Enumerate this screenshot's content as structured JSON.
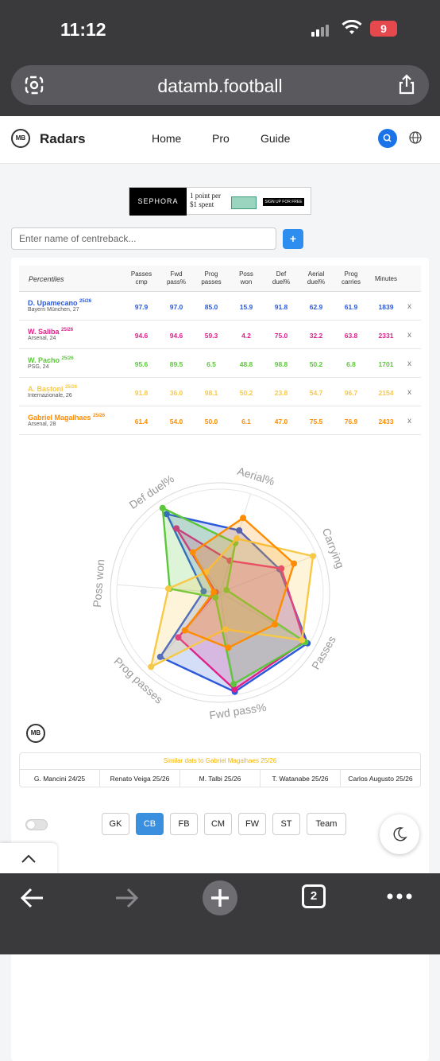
{
  "status": {
    "time": "11:12",
    "battery": "9"
  },
  "browser": {
    "url": "datamb.football",
    "tab_count": "2"
  },
  "nav": {
    "brand": "Radars",
    "logo": "MB",
    "links": [
      "Home",
      "Pro",
      "Guide"
    ]
  },
  "ad": {
    "brand": "SEPHORA",
    "line1": "1 point per",
    "line2": "$1 spent",
    "cta": "SIGN UP FOR FREE"
  },
  "search": {
    "placeholder": "Enter name of centreback...",
    "add": "+"
  },
  "table": {
    "percentiles_label": "Percentiles",
    "headers": [
      [
        "Passes",
        "cmp"
      ],
      [
        "Fwd",
        "pass%"
      ],
      [
        "Prog",
        "passes"
      ],
      [
        "Poss",
        "won"
      ],
      [
        "Def",
        "duel%"
      ],
      [
        "Aerial",
        "duel%"
      ],
      [
        "Prog",
        "carries"
      ],
      [
        "Minutes",
        ""
      ]
    ],
    "remove": "x",
    "rows": [
      {
        "name": "D. Upamecano",
        "season": "25/26",
        "club": "Bayern München, 27",
        "color": "#2b59d9",
        "values": [
          "97.9",
          "97.0",
          "85.0",
          "15.9",
          "91.8",
          "62.9",
          "61.9",
          "1839"
        ]
      },
      {
        "name": "W. Saliba",
        "season": "25/26",
        "club": "Arsenal, 24",
        "color": "#e0218a",
        "values": [
          "94.6",
          "94.6",
          "59.3",
          "4.2",
          "75.0",
          "32.2",
          "63.8",
          "2331"
        ]
      },
      {
        "name": "W. Pacho",
        "season": "25/26",
        "club": "PSG, 24",
        "color": "#5cc73a",
        "values": [
          "95.6",
          "89.5",
          "6.5",
          "48.8",
          "98.8",
          "50.2",
          "6.8",
          "1701"
        ]
      },
      {
        "name": "A. Bastoni",
        "season": "25/26",
        "club": "Internazionale, 26",
        "color": "#f7c948",
        "values": [
          "91.8",
          "36.0",
          "98.1",
          "50.2",
          "23.8",
          "54.7",
          "96.7",
          "2154"
        ]
      },
      {
        "name": "Gabriel Magalhaes",
        "season": "25/26",
        "club": "Arsenal, 28",
        "color": "#ff8c00",
        "values": [
          "61.4",
          "54.0",
          "50.0",
          "6.1",
          "47.0",
          "75.5",
          "76.9",
          "2433"
        ]
      }
    ]
  },
  "chart_data": {
    "type": "radar",
    "axes": [
      "Aerial%",
      "Carrying",
      "Passes",
      "Fwd pass%",
      "Prog passes",
      "Poss won",
      "Def duel%"
    ],
    "range": [
      0,
      100
    ],
    "series": [
      {
        "name": "D. Upamecano 25/26",
        "color": "#2b59d9",
        "values": [
          62.9,
          61.9,
          97.9,
          97.0,
          85.0,
          15.9,
          91.8
        ]
      },
      {
        "name": "W. Saliba 25/26",
        "color": "#e0218a",
        "values": [
          32.2,
          63.8,
          94.6,
          94.6,
          59.3,
          4.2,
          75.0
        ]
      },
      {
        "name": "W. Pacho 25/26",
        "color": "#5cc73a",
        "values": [
          50.2,
          6.8,
          95.6,
          89.5,
          6.5,
          48.8,
          98.8
        ]
      },
      {
        "name": "A. Bastoni 25/26",
        "color": "#f7c948",
        "values": [
          54.7,
          96.7,
          91.8,
          36.0,
          98.1,
          50.2,
          23.8
        ]
      },
      {
        "name": "Gabriel Magalhaes 25/26",
        "color": "#ff8c00",
        "values": [
          75.5,
          76.9,
          61.4,
          54.0,
          50.0,
          6.1,
          47.0
        ]
      }
    ]
  },
  "similar": {
    "title": "Similar dats to Gabriel Magalhaes 25/26",
    "players": [
      "G. Mancini 24/25",
      "Renato Veiga 25/26",
      "M. Talbi 25/26",
      "T. Watanabe 25/26",
      "Carlos Augusto 25/26"
    ]
  },
  "positions": {
    "buttons": [
      "GK",
      "CB",
      "FB",
      "CM",
      "FW",
      "ST",
      "Team"
    ],
    "active": "CB"
  }
}
